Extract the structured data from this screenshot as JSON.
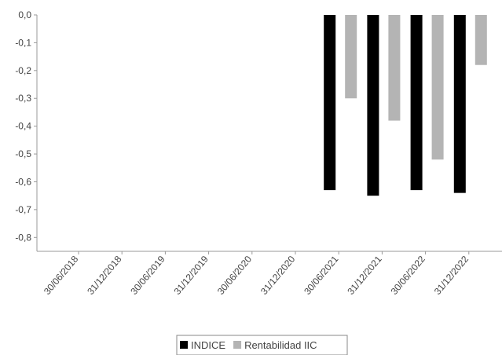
{
  "chart_data": {
    "type": "bar",
    "categories": [
      "30/06/2018",
      "31/12/2018",
      "30/06/2019",
      "31/12/2019",
      "30/06/2020",
      "31/12/2020",
      "30/06/2021",
      "31/12/2021",
      "30/06/2022",
      "31/12/2022"
    ],
    "series": [
      {
        "name": "INDICE",
        "color": "#000000",
        "values": [
          null,
          null,
          null,
          null,
          null,
          null,
          -0.63,
          -0.65,
          -0.63,
          -0.64
        ]
      },
      {
        "name": "Rentabilidad IIC",
        "color": "#b4b4b4",
        "values": [
          null,
          null,
          null,
          null,
          null,
          null,
          -0.3,
          -0.38,
          -0.52,
          -0.18
        ]
      }
    ],
    "ylim": [
      -0.85,
      0
    ],
    "yticks": [
      {
        "value": 0,
        "label": "0,0"
      },
      {
        "value": -0.1,
        "label": "-0,1"
      },
      {
        "value": -0.2,
        "label": "-0,2"
      },
      {
        "value": -0.3,
        "label": "-0,3"
      },
      {
        "value": -0.4,
        "label": "-0,4"
      },
      {
        "value": -0.5,
        "label": "-0,5"
      },
      {
        "value": -0.6,
        "label": "-0,6"
      },
      {
        "value": -0.7,
        "label": "-0,7"
      },
      {
        "value": -0.8,
        "label": "-0,8"
      }
    ],
    "legend": "bottom"
  }
}
